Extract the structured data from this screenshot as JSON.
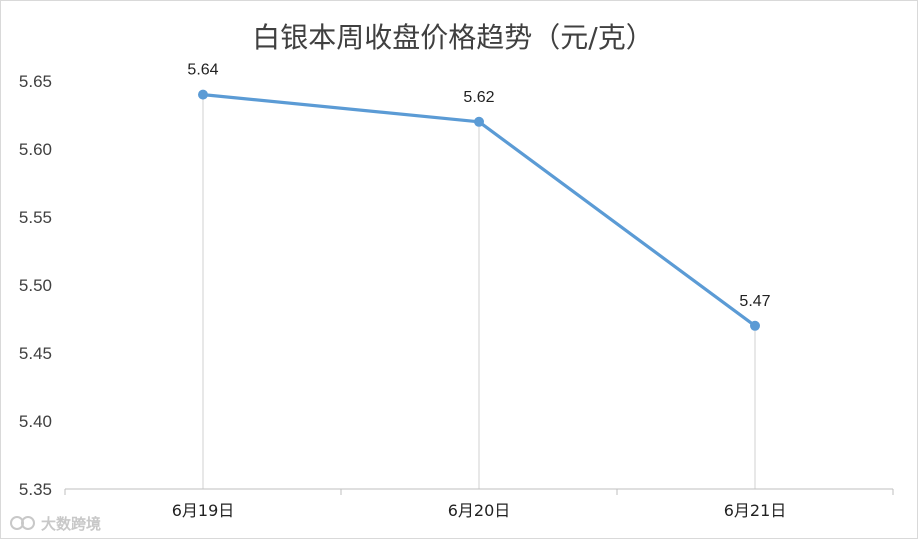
{
  "chart_data": {
    "type": "line",
    "title": "白银本周收盘价格趋势（元/克）",
    "categories": [
      "6月19日",
      "6月20日",
      "6月21日"
    ],
    "series": [
      {
        "values": [
          5.64,
          5.62,
          5.47
        ]
      }
    ],
    "data_labels": [
      "5.64",
      "5.62",
      "5.47"
    ],
    "ylim": [
      5.35,
      5.65
    ],
    "yticks": [
      "5.35",
      "5.40",
      "5.45",
      "5.50",
      "5.55",
      "5.60",
      "5.65"
    ],
    "xlabel": "",
    "ylabel": "",
    "grid": false,
    "drop_lines": true,
    "legend": "none"
  },
  "colors": {
    "line": "#5b9bd5",
    "drop_line": "#d9d9d9",
    "axis": "#bfbfbf"
  },
  "watermark": {
    "text": "大数跨境",
    "icon": "logo-icon"
  }
}
